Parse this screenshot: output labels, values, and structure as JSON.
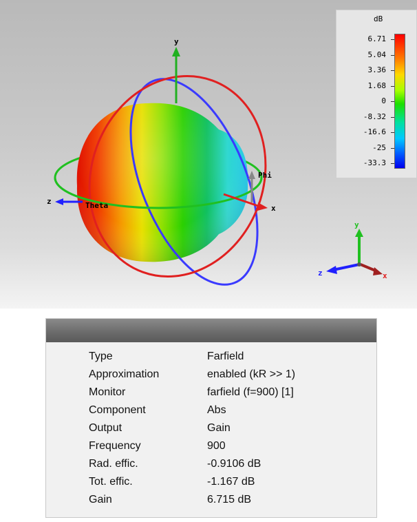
{
  "legend": {
    "unit": "dB",
    "ticks": [
      "6.71",
      "5.04",
      "3.36",
      "1.68",
      "0",
      "-8.32",
      "-16.6",
      "-25",
      "-33.3"
    ]
  },
  "scene": {
    "axes": {
      "x": "x",
      "y": "y",
      "z": "z",
      "theta": "Theta",
      "phi": "Phi"
    },
    "triad": {
      "x": "x",
      "y": "y",
      "z": "z"
    },
    "colors": {
      "ring_red": "#e02020",
      "ring_blue": "#3a3aff",
      "ring_green": "#20c020"
    }
  },
  "info": {
    "rows": [
      {
        "key": "Type",
        "value": "Farfield"
      },
      {
        "key": "Approximation",
        "value": "enabled (kR >> 1)"
      },
      {
        "key": "Monitor",
        "value": "farfield (f=900) [1]"
      },
      {
        "key": "Component",
        "value": "Abs"
      },
      {
        "key": "Output",
        "value": "Gain"
      },
      {
        "key": "Frequency",
        "value": "900"
      },
      {
        "key": "Rad. effic.",
        "value": "-0.9106 dB"
      },
      {
        "key": "Tot. effic.",
        "value": "-1.167 dB"
      },
      {
        "key": "Gain",
        "value": "6.715 dB"
      }
    ]
  }
}
